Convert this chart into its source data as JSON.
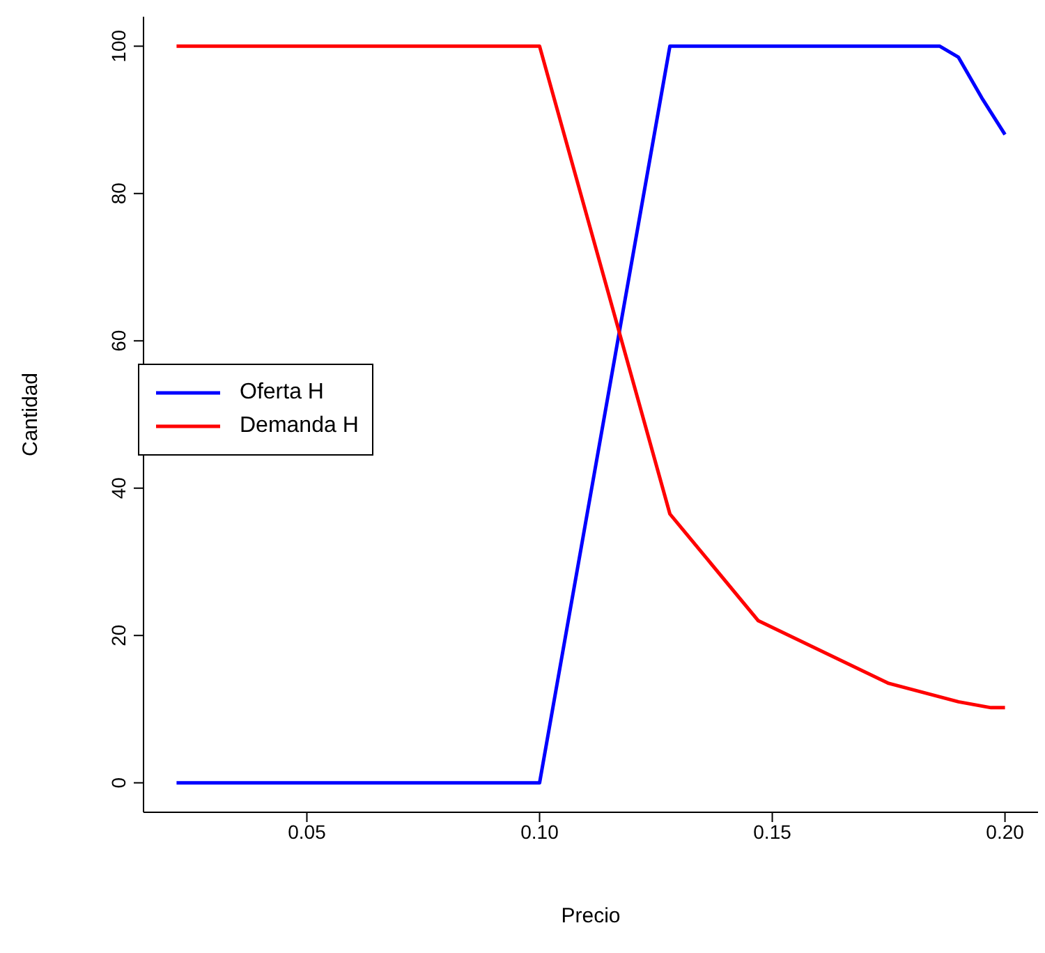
{
  "chart_data": {
    "type": "line",
    "xlabel": "Precio",
    "ylabel": "Cantidad",
    "xlim": [
      0.0149,
      0.2071
    ],
    "ylim": [
      -4,
      104
    ],
    "xticks": [
      {
        "value": 0.05,
        "label": "0.05"
      },
      {
        "value": 0.1,
        "label": "0.10"
      },
      {
        "value": 0.15,
        "label": "0.15"
      },
      {
        "value": 0.2,
        "label": "0.20"
      }
    ],
    "yticks": [
      0,
      20,
      40,
      60,
      80,
      100
    ],
    "grid": false,
    "legend": "left",
    "marker": "none",
    "line_style": "solid",
    "series": [
      {
        "name": "Oferta H",
        "color": "#0000ff",
        "x": [
          0.022,
          0.1,
          0.128,
          0.186,
          0.19,
          0.195,
          0.2
        ],
        "values": [
          0,
          0,
          100,
          100,
          98.5,
          93,
          88
        ]
      },
      {
        "name": "Demanda H",
        "color": "#ff0000",
        "x": [
          0.022,
          0.1,
          0.128,
          0.147,
          0.175,
          0.19,
          0.197,
          0.2
        ],
        "values": [
          100,
          100,
          36.5,
          22,
          13.5,
          11,
          10.2,
          10.2
        ]
      }
    ]
  }
}
